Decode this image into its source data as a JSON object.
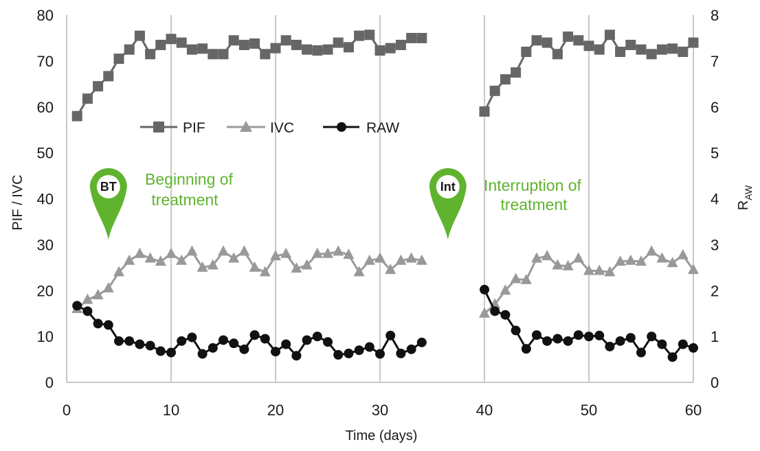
{
  "chart_data": {
    "type": "line",
    "x_axis": {
      "label": "Time (days)",
      "range": [
        0,
        60
      ],
      "ticks": [
        0,
        10,
        20,
        30,
        40,
        50,
        60
      ]
    },
    "y_axis_left": {
      "label": "PIF / IVC",
      "range": [
        0,
        80
      ],
      "ticks": [
        0,
        10,
        20,
        30,
        40,
        50,
        60,
        70,
        80
      ]
    },
    "y_axis_right": {
      "label": "R",
      "label_subscript": "AW",
      "range": [
        0,
        8
      ],
      "ticks": [
        0,
        1,
        2,
        3,
        4,
        5,
        6,
        7,
        8
      ]
    },
    "grid": "vertical",
    "series": [
      {
        "name": "PIF",
        "axis": "left",
        "marker": "square",
        "color": "#666666",
        "segments": [
          {
            "x": [
              1,
              2,
              3,
              4,
              5,
              6,
              7,
              8,
              9,
              10,
              11,
              12,
              13,
              14,
              15,
              16,
              17,
              18,
              19,
              20,
              21,
              22,
              23,
              24,
              25,
              26,
              27,
              28,
              29,
              30,
              31,
              32,
              33,
              34
            ],
            "y": [
              58,
              61.8,
              64.5,
              66.7,
              70.5,
              72.5,
              75.5,
              71.5,
              73.5,
              74.8,
              74,
              72.5,
              72.7,
              71.5,
              71.5,
              74.5,
              73.5,
              73.8,
              71.5,
              72.8,
              74.5,
              73.5,
              72.5,
              72.3,
              72.5,
              74,
              73,
              75.5,
              75.7,
              72.3,
              72.8,
              73.5,
              75,
              75
            ]
          },
          {
            "x": [
              40,
              41,
              42,
              43,
              44,
              45,
              46,
              47,
              48,
              49,
              50,
              51,
              52,
              53,
              54,
              55,
              56,
              57,
              58,
              59,
              60
            ],
            "y": [
              59,
              63.5,
              66,
              67.5,
              72,
              74.5,
              74,
              71.5,
              75.3,
              74.5,
              73.3,
              72.5,
              75.7,
              72,
              73.5,
              72.5,
              71.5,
              72.5,
              72.7,
              72,
              74
            ]
          }
        ]
      },
      {
        "name": "IVC",
        "axis": "left",
        "marker": "triangle",
        "color": "#999999",
        "segments": [
          {
            "x": [
              1,
              2,
              3,
              4,
              5,
              6,
              7,
              8,
              9,
              10,
              11,
              12,
              13,
              14,
              15,
              16,
              17,
              18,
              19,
              20,
              21,
              22,
              23,
              24,
              25,
              26,
              27,
              28,
              29,
              30,
              31,
              32,
              33,
              34
            ],
            "y": [
              16,
              18,
              19,
              20.5,
              24,
              26.5,
              28,
              27,
              26.3,
              28,
              26.5,
              28.5,
              25,
              25.5,
              28.5,
              27,
              28.5,
              25,
              24,
              27.5,
              28,
              24.8,
              25.5,
              28,
              28,
              28.5,
              27.8,
              24,
              26.5,
              27,
              24.5,
              26.5,
              27,
              26.5
            ]
          },
          {
            "x": [
              40,
              41,
              42,
              43,
              44,
              45,
              46,
              47,
              48,
              49,
              50,
              51,
              52,
              53,
              54,
              55,
              56,
              57,
              58,
              59,
              60
            ],
            "y": [
              15,
              17,
              20,
              22.5,
              22.3,
              27,
              27.5,
              25.5,
              25.3,
              27,
              24.3,
              24.3,
              24,
              26.3,
              26.5,
              26.3,
              28.5,
              27,
              26,
              27.7,
              24.5
            ]
          }
        ]
      },
      {
        "name": "RAW",
        "axis": "right",
        "marker": "circle",
        "color": "#111111",
        "segments": [
          {
            "x": [
              1,
              2,
              3,
              4,
              5,
              6,
              7,
              8,
              9,
              10,
              11,
              12,
              13,
              14,
              15,
              16,
              17,
              18,
              19,
              20,
              21,
              22,
              23,
              24,
              25,
              26,
              27,
              28,
              29,
              30,
              31,
              32,
              33,
              34
            ],
            "y": [
              1.67,
              1.55,
              1.28,
              1.25,
              0.9,
              0.9,
              0.83,
              0.8,
              0.68,
              0.65,
              0.9,
              0.98,
              0.62,
              0.75,
              0.92,
              0.85,
              0.72,
              1.03,
              0.95,
              0.67,
              0.83,
              0.58,
              0.92,
              1.0,
              0.88,
              0.6,
              0.63,
              0.7,
              0.77,
              0.62,
              1.02,
              0.63,
              0.72,
              0.87
            ]
          },
          {
            "x": [
              40,
              41,
              42,
              43,
              44,
              45,
              46,
              47,
              48,
              49,
              50,
              51,
              52,
              53,
              54,
              55,
              56,
              57,
              58,
              59,
              60
            ],
            "y": [
              2.02,
              1.55,
              1.47,
              1.13,
              0.73,
              1.03,
              0.9,
              0.95,
              0.9,
              1.03,
              1.0,
              1.02,
              0.78,
              0.9,
              0.97,
              0.65,
              1.0,
              0.83,
              0.55,
              0.83,
              0.75
            ]
          }
        ]
      }
    ],
    "legend": {
      "placement": "upper-left",
      "items": [
        "PIF",
        "IVC",
        "RAW"
      ]
    },
    "annotations": [
      {
        "pin_label": "BT",
        "text_line1": "Beginning of",
        "text_line2": "treatment",
        "x": 4
      },
      {
        "pin_label": "Int",
        "text_line1": "Interruption of",
        "text_line2": "treatment",
        "x": 36.5
      }
    ],
    "colors": {
      "annotation": "#5fb32e",
      "grid": "#c8c8c8"
    }
  }
}
